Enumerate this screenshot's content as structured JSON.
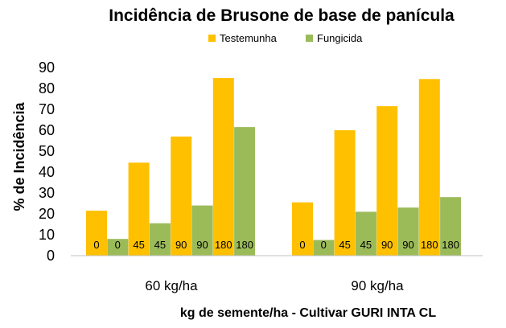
{
  "chart_data": {
    "type": "bar",
    "title": "Incidência de Brusone de base de panícula",
    "ylabel": "% de Incidência",
    "xlabel": "kg de semente/ha - Cultivar GURI INTA CL",
    "ylim": [
      0,
      90
    ],
    "yticks": [
      0,
      10,
      20,
      30,
      40,
      50,
      60,
      70,
      80,
      90
    ],
    "grid": false,
    "legend_position": "top",
    "groups": [
      {
        "label": "60 kg/ha",
        "bars": [
          {
            "series": "Testemunha",
            "label": "0",
            "value": 21.5
          },
          {
            "series": "Fungicida",
            "label": "0",
            "value": 8
          },
          {
            "series": "Testemunha",
            "label": "45",
            "value": 44.5
          },
          {
            "series": "Fungicida",
            "label": "45",
            "value": 15.5
          },
          {
            "series": "Testemunha",
            "label": "90",
            "value": 57
          },
          {
            "series": "Fungicida",
            "label": "90",
            "value": 24
          },
          {
            "series": "Testemunha",
            "label": "180",
            "value": 85
          },
          {
            "series": "Fungicida",
            "label": "180",
            "value": 61.5
          }
        ]
      },
      {
        "label": "90 kg/ha",
        "bars": [
          {
            "series": "Testemunha",
            "label": "0",
            "value": 25.5
          },
          {
            "series": "Fungicida",
            "label": "0",
            "value": 7.5
          },
          {
            "series": "Testemunha",
            "label": "45",
            "value": 60
          },
          {
            "series": "Fungicida",
            "label": "45",
            "value": 21
          },
          {
            "series": "Testemunha",
            "label": "90",
            "value": 71.5
          },
          {
            "series": "Fungicida",
            "label": "90",
            "value": 23
          },
          {
            "series": "Testemunha",
            "label": "180",
            "value": 84.5
          },
          {
            "series": "Fungicida",
            "label": "180",
            "value": 28
          }
        ]
      }
    ],
    "series": [
      {
        "name": "Testemunha",
        "color": "#FFC000"
      },
      {
        "name": "Fungicida",
        "color": "#9BBB59"
      }
    ]
  }
}
